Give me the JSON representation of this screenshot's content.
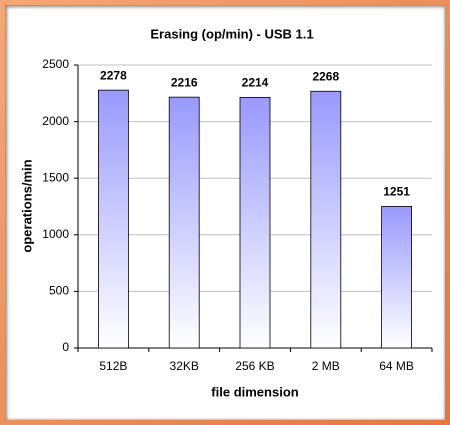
{
  "chart_data": {
    "type": "bar",
    "title": "Erasing (op/min) - USB 1.1",
    "x_label": "file dimension",
    "y_label": "operations/min",
    "categories": [
      "512B",
      "32KB",
      "256 KB",
      "2 MB",
      "64 MB"
    ],
    "values": [
      2278,
      2216,
      2214,
      2268,
      1251
    ],
    "color": "#9999ff",
    "ylim": [
      0,
      2500
    ],
    "yticks": [
      0,
      500,
      1000,
      1500,
      2000,
      2500
    ],
    "grid": true
  }
}
